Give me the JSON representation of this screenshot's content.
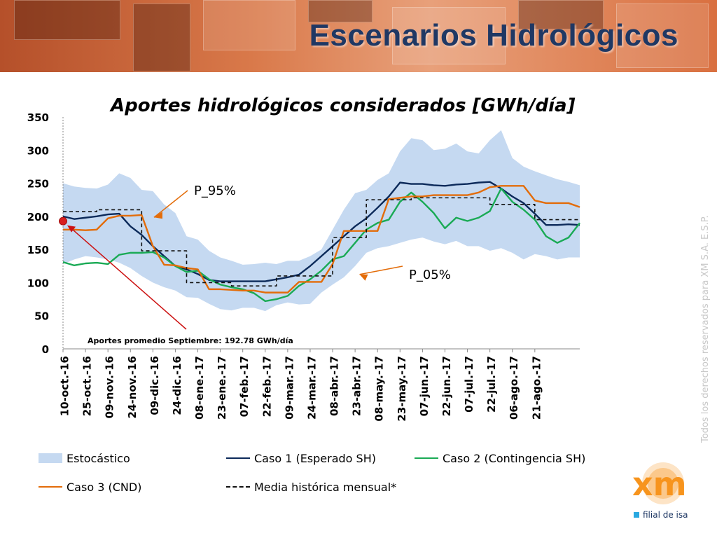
{
  "header": {
    "title": "Escenarios Hidrológicos"
  },
  "chart_data": {
    "type": "line",
    "title": "Aportes hidrológicos considerados [GWh/día]",
    "xlabel": "",
    "ylabel": "",
    "ylim": [
      0,
      350
    ],
    "yticks": [
      0,
      50,
      100,
      150,
      200,
      250,
      300,
      350
    ],
    "x_tick_labels": [
      "10-oct.-16",
      "25-oct.-16",
      "09-nov.-16",
      "24-nov.-16",
      "09-dic.-16",
      "24-dic.-16",
      "08-ene.-17",
      "23-ene.-17",
      "07-feb.-17",
      "22-feb.-17",
      "09-mar.-17",
      "24-mar.-17",
      "08-abr.-17",
      "23-abr.-17",
      "08-may.-17",
      "23-may.-17",
      "07-jun.-17",
      "22-jun.-17",
      "07-jul.-17",
      "22-jul.-17",
      "06-ago.-17",
      "21-ago.-17"
    ],
    "x_range": [
      0,
      23
    ],
    "grid": false,
    "legend_position": "bottom",
    "band": {
      "name": "Estocástico",
      "color": "#c5d9f1",
      "upper": [
        [
          0,
          250
        ],
        [
          0.5,
          245
        ],
        [
          1,
          243
        ],
        [
          1.5,
          242
        ],
        [
          2,
          248
        ],
        [
          2.5,
          265
        ],
        [
          3,
          258
        ],
        [
          3.5,
          240
        ],
        [
          4,
          238
        ],
        [
          4.5,
          218
        ],
        [
          5,
          205
        ],
        [
          5.5,
          170
        ],
        [
          6,
          165
        ],
        [
          6.5,
          148
        ],
        [
          7,
          138
        ],
        [
          7.5,
          133
        ],
        [
          8,
          127
        ],
        [
          8.5,
          128
        ],
        [
          9,
          130
        ],
        [
          9.5,
          128
        ],
        [
          10,
          133
        ],
        [
          10.5,
          133
        ],
        [
          11,
          140
        ],
        [
          11.5,
          150
        ],
        [
          12,
          180
        ],
        [
          12.5,
          210
        ],
        [
          13,
          235
        ],
        [
          13.5,
          240
        ],
        [
          14,
          255
        ],
        [
          14.5,
          265
        ],
        [
          15,
          298
        ],
        [
          15.5,
          318
        ],
        [
          16,
          315
        ],
        [
          16.5,
          300
        ],
        [
          17,
          302
        ],
        [
          17.5,
          310
        ],
        [
          18,
          298
        ],
        [
          18.5,
          295
        ],
        [
          19,
          315
        ],
        [
          19.5,
          330
        ],
        [
          20,
          288
        ],
        [
          20.5,
          275
        ],
        [
          21,
          268
        ],
        [
          21.5,
          262
        ],
        [
          22,
          256
        ],
        [
          22.5,
          252
        ],
        [
          23,
          247
        ]
      ],
      "lower": [
        [
          0,
          128
        ],
        [
          0.5,
          135
        ],
        [
          1,
          140
        ],
        [
          1.5,
          138
        ],
        [
          2,
          135
        ],
        [
          2.5,
          130
        ],
        [
          3,
          122
        ],
        [
          3.5,
          110
        ],
        [
          4,
          100
        ],
        [
          4.5,
          93
        ],
        [
          5,
          88
        ],
        [
          5.5,
          78
        ],
        [
          6,
          77
        ],
        [
          6.5,
          68
        ],
        [
          7,
          60
        ],
        [
          7.5,
          58
        ],
        [
          8,
          62
        ],
        [
          8.5,
          62
        ],
        [
          9,
          57
        ],
        [
          9.5,
          66
        ],
        [
          10,
          70
        ],
        [
          10.5,
          67
        ],
        [
          11,
          68
        ],
        [
          11.5,
          85
        ],
        [
          12,
          97
        ],
        [
          12.5,
          108
        ],
        [
          13,
          125
        ],
        [
          13.5,
          145
        ],
        [
          14,
          152
        ],
        [
          14.5,
          155
        ],
        [
          15,
          160
        ],
        [
          15.5,
          165
        ],
        [
          16,
          168
        ],
        [
          16.5,
          162
        ],
        [
          17,
          158
        ],
        [
          17.5,
          163
        ],
        [
          18,
          155
        ],
        [
          18.5,
          155
        ],
        [
          19,
          148
        ],
        [
          19.5,
          152
        ],
        [
          20,
          145
        ],
        [
          20.5,
          135
        ],
        [
          21,
          143
        ],
        [
          21.5,
          140
        ],
        [
          22,
          135
        ],
        [
          22.5,
          138
        ],
        [
          23,
          138
        ]
      ]
    },
    "series": [
      {
        "name": "Caso 1 (Esperado SH)",
        "color": "#0c2a5a",
        "dash": "",
        "points": [
          [
            0,
            200
          ],
          [
            0.5,
            196
          ],
          [
            1,
            198
          ],
          [
            1.5,
            200
          ],
          [
            2,
            203
          ],
          [
            2.5,
            204
          ],
          [
            3,
            185
          ],
          [
            3.5,
            172
          ],
          [
            4,
            155
          ],
          [
            4.5,
            140
          ],
          [
            5,
            125
          ],
          [
            5.5,
            120
          ],
          [
            6,
            113
          ],
          [
            6.5,
            104
          ],
          [
            7,
            102
          ],
          [
            7.5,
            102
          ],
          [
            8,
            102
          ],
          [
            8.5,
            102
          ],
          [
            9,
            102
          ],
          [
            9.5,
            105
          ],
          [
            10,
            108
          ],
          [
            10.5,
            112
          ],
          [
            11,
            125
          ],
          [
            11.5,
            140
          ],
          [
            12,
            155
          ],
          [
            12.5,
            170
          ],
          [
            13,
            185
          ],
          [
            13.5,
            197
          ],
          [
            14,
            213
          ],
          [
            14.5,
            230
          ],
          [
            15,
            251
          ],
          [
            15.5,
            249
          ],
          [
            16,
            249
          ],
          [
            16.5,
            247
          ],
          [
            17,
            246
          ],
          [
            17.5,
            248
          ],
          [
            18,
            249
          ],
          [
            18.5,
            251
          ],
          [
            19,
            252
          ],
          [
            19.5,
            242
          ],
          [
            20,
            230
          ],
          [
            20.5,
            220
          ],
          [
            21,
            204
          ],
          [
            21.5,
            187
          ],
          [
            22,
            187
          ],
          [
            22.5,
            188
          ],
          [
            23,
            187
          ]
        ]
      },
      {
        "name": "Caso 2 (Contingencia SH)",
        "color": "#1aaa55",
        "dash": "",
        "points": [
          [
            0,
            131
          ],
          [
            0.5,
            126
          ],
          [
            1,
            129
          ],
          [
            1.5,
            130
          ],
          [
            2,
            128
          ],
          [
            2.5,
            142
          ],
          [
            3,
            145
          ],
          [
            3.5,
            145
          ],
          [
            4,
            146
          ],
          [
            4.5,
            138
          ],
          [
            5,
            125
          ],
          [
            5.5,
            116
          ],
          [
            6,
            118
          ],
          [
            6.5,
            105
          ],
          [
            7,
            97
          ],
          [
            7.5,
            93
          ],
          [
            8,
            90
          ],
          [
            8.5,
            84
          ],
          [
            9,
            72
          ],
          [
            9.5,
            75
          ],
          [
            10,
            80
          ],
          [
            10.5,
            95
          ],
          [
            11,
            105
          ],
          [
            11.5,
            118
          ],
          [
            12,
            135
          ],
          [
            12.5,
            140
          ],
          [
            13,
            160
          ],
          [
            13.5,
            180
          ],
          [
            14,
            190
          ],
          [
            14.5,
            195
          ],
          [
            15,
            222
          ],
          [
            15.5,
            236
          ],
          [
            16,
            222
          ],
          [
            16.5,
            205
          ],
          [
            17,
            182
          ],
          [
            17.5,
            198
          ],
          [
            18,
            193
          ],
          [
            18.5,
            198
          ],
          [
            19,
            208
          ],
          [
            19.5,
            242
          ],
          [
            20,
            222
          ],
          [
            20.5,
            210
          ],
          [
            21,
            195
          ],
          [
            21.5,
            170
          ],
          [
            22,
            160
          ],
          [
            22.5,
            168
          ],
          [
            23,
            190
          ]
        ]
      },
      {
        "name": "Caso 3 (CND)",
        "color": "#e36c09",
        "dash": "",
        "points": [
          [
            0,
            180
          ],
          [
            0.5,
            180
          ],
          [
            1,
            179
          ],
          [
            1.5,
            180
          ],
          [
            2,
            197
          ],
          [
            2.5,
            201
          ],
          [
            3,
            201
          ],
          [
            3.5,
            202
          ],
          [
            4,
            155
          ],
          [
            4.5,
            127
          ],
          [
            5,
            126
          ],
          [
            5.5,
            122
          ],
          [
            6,
            120
          ],
          [
            6.5,
            90
          ],
          [
            7,
            90
          ],
          [
            7.5,
            89
          ],
          [
            8,
            88
          ],
          [
            8.5,
            88
          ],
          [
            9,
            85
          ],
          [
            9.5,
            85
          ],
          [
            10,
            85
          ],
          [
            10.5,
            101
          ],
          [
            11,
            101
          ],
          [
            11.5,
            101
          ],
          [
            12,
            128
          ],
          [
            12.5,
            178
          ],
          [
            13,
            178
          ],
          [
            13.5,
            178
          ],
          [
            14,
            178
          ],
          [
            14.5,
            226
          ],
          [
            15,
            228
          ],
          [
            15.5,
            230
          ],
          [
            16,
            230
          ],
          [
            16.5,
            232
          ],
          [
            17,
            232
          ],
          [
            17.5,
            232
          ],
          [
            18,
            232
          ],
          [
            18.5,
            236
          ],
          [
            19,
            244
          ],
          [
            19.5,
            246
          ],
          [
            20,
            246
          ],
          [
            20.5,
            246
          ],
          [
            21,
            224
          ],
          [
            21.5,
            220
          ],
          [
            22,
            220
          ],
          [
            22.5,
            220
          ],
          [
            23,
            214
          ]
        ]
      },
      {
        "name": "Media histórica mensual*",
        "color": "#111111",
        "dash": "5,4",
        "points": [
          [
            0,
            207
          ],
          [
            1.5,
            207
          ],
          [
            1.5,
            210
          ],
          [
            3.5,
            210
          ],
          [
            3.5,
            148
          ],
          [
            5.5,
            148
          ],
          [
            5.5,
            100
          ],
          [
            7.5,
            100
          ],
          [
            7.5,
            95
          ],
          [
            9.5,
            95
          ],
          [
            9.5,
            110
          ],
          [
            11.5,
            110
          ],
          [
            11.5,
            110
          ],
          [
            12,
            110
          ],
          [
            12,
            168
          ],
          [
            13.5,
            168
          ],
          [
            13.5,
            225
          ],
          [
            15.5,
            225
          ],
          [
            15.5,
            228
          ],
          [
            17.5,
            228
          ],
          [
            17.5,
            228
          ],
          [
            19,
            228
          ],
          [
            19,
            218
          ],
          [
            21,
            218
          ],
          [
            21,
            195
          ],
          [
            23,
            195
          ]
        ]
      }
    ],
    "annotations": [
      {
        "text": "P_95%",
        "points_to": [
          3.8,
          245
        ]
      },
      {
        "text": "P_05%",
        "points_to": [
          13.2,
          142
        ]
      },
      {
        "text": "Aportes promedio Septiembre: 192.78 GWh/día",
        "marker": [
          0,
          192.78
        ]
      }
    ],
    "legend": [
      {
        "label": "Estocástico",
        "kind": "band",
        "color": "#c5d9f1"
      },
      {
        "label": "Caso 1 (Esperado SH)",
        "kind": "line",
        "color": "#0c2a5a"
      },
      {
        "label": "Caso 2 (Contingencia SH)",
        "kind": "line",
        "color": "#1aaa55"
      },
      {
        "label": "Caso 3 (CND)",
        "kind": "line",
        "color": "#e36c09"
      },
      {
        "label": "Media histórica mensual*",
        "kind": "dash",
        "color": "#111111"
      }
    ]
  },
  "footer": {
    "copyright": "Todos los derechos reservados para XM S.A. E.S.P.",
    "logo_tagline": "filial de isa",
    "logo_name": "xm",
    "logo_color": "#f7941d"
  }
}
